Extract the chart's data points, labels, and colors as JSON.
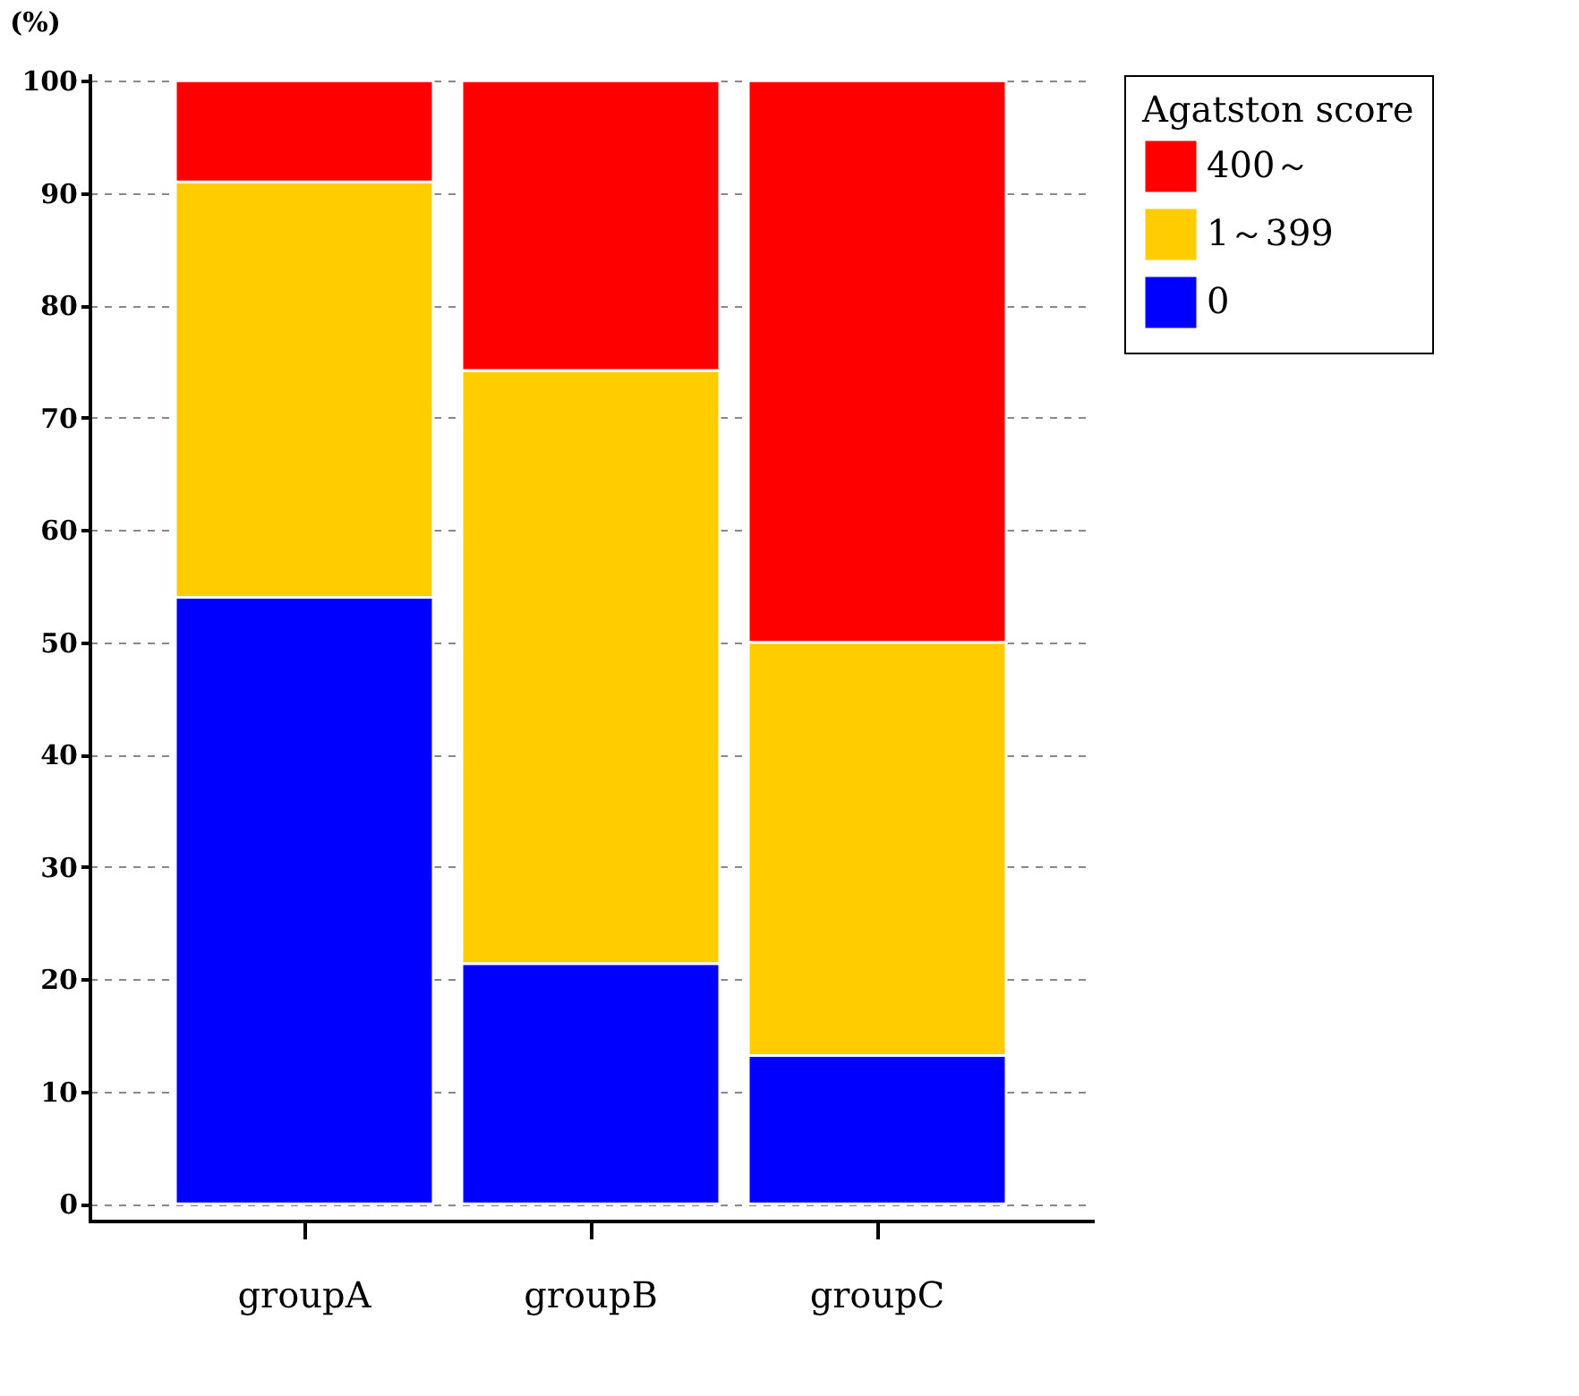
{
  "chart_data": {
    "type": "bar",
    "stacked": true,
    "ylabel": "(%)",
    "legend_title": "Agatston score",
    "categories": [
      "groupA",
      "groupB",
      "groupC"
    ],
    "series": [
      {
        "name": "0",
        "color": "#0000ff",
        "values": [
          54,
          21.4,
          13.2
        ]
      },
      {
        "name": "1～399",
        "color": "#ffcc00",
        "values": [
          37,
          52.8,
          36.8
        ]
      },
      {
        "name": "400～",
        "color": "#ff0000",
        "values": [
          9,
          25.8,
          50
        ]
      }
    ],
    "ylim": [
      -1.5,
      100.5
    ],
    "yticks": [
      0,
      10,
      20,
      30,
      40,
      50,
      60,
      70,
      80,
      90,
      100
    ],
    "grid": "y",
    "legend": "right"
  }
}
